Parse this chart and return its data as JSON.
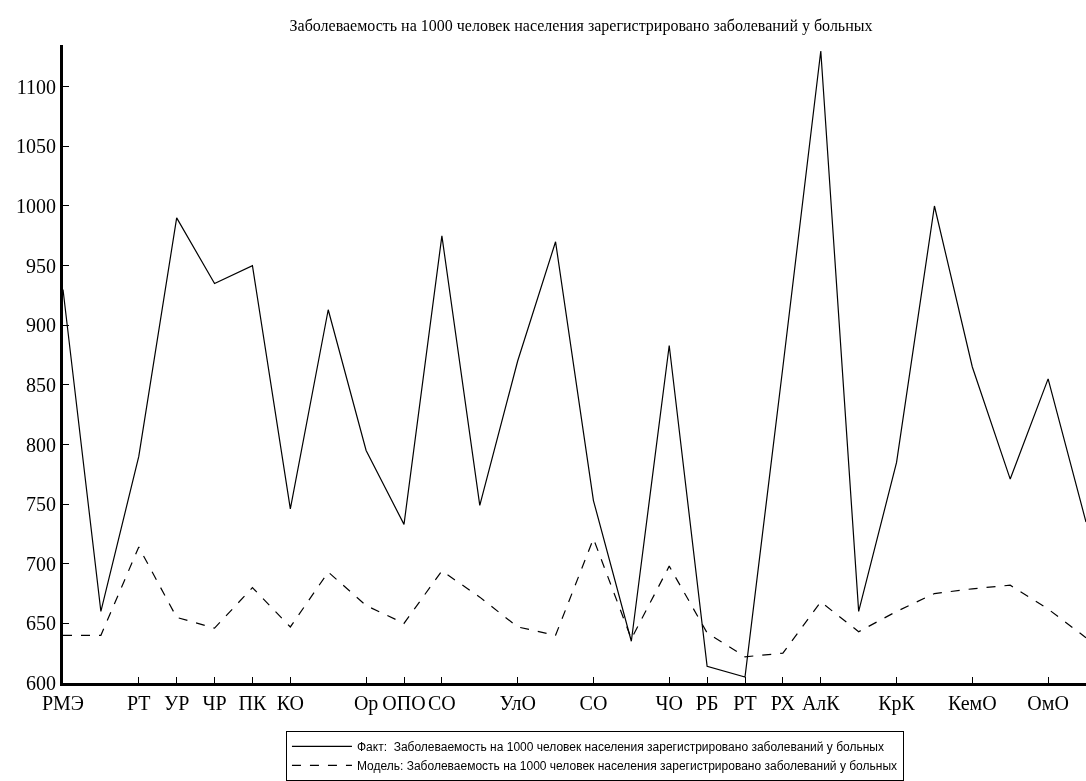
{
  "chart_data": {
    "type": "line",
    "title": "Заболеваемость на 1000 человек населения зарегистрировано заболеваний у больных",
    "categories": [
      "РМЭ",
      null,
      "РТ",
      "УР",
      "ЧР",
      "ПК",
      "КО",
      null,
      "Ор",
      "ОПО",
      "СО",
      null,
      "УлО",
      null,
      "СО",
      null,
      "ЧО",
      "РБ",
      "РТ",
      "РХ",
      "АлК",
      null,
      "КрК",
      null,
      "КемО",
      null,
      "ОмО",
      null
    ],
    "series": [
      {
        "name": "Факт:  Заболеваемость на 1000 человек населения зарегистрировано заболеваний у больных",
        "color": "#000000",
        "line_style": "solid",
        "values": [
          930,
          660,
          790,
          990,
          935,
          950,
          746,
          913,
          795,
          733,
          975,
          749,
          870,
          970,
          753,
          635,
          883,
          614,
          605,
          865,
          1130,
          660,
          785,
          1000,
          865,
          771,
          855,
          735
        ]
      },
      {
        "name": "Модель: Заболеваемость на 1000 человек населения зарегистрировано заболеваний у больных",
        "color": "#000000",
        "line_style": "dashed",
        "values": [
          640,
          640,
          714,
          655,
          646,
          680,
          647,
          693,
          665,
          650,
          694,
          672,
          647,
          640,
          721,
          637,
          698,
          642,
          622,
          625,
          668,
          643,
          660,
          675,
          679,
          682,
          662,
          638
        ]
      }
    ],
    "ylim": [
      600,
      1135
    ],
    "yticks": [
      600,
      650,
      700,
      750,
      800,
      850,
      900,
      950,
      1000,
      1050,
      1100
    ],
    "grid": false,
    "legend": "bottom",
    "marker": "none"
  }
}
